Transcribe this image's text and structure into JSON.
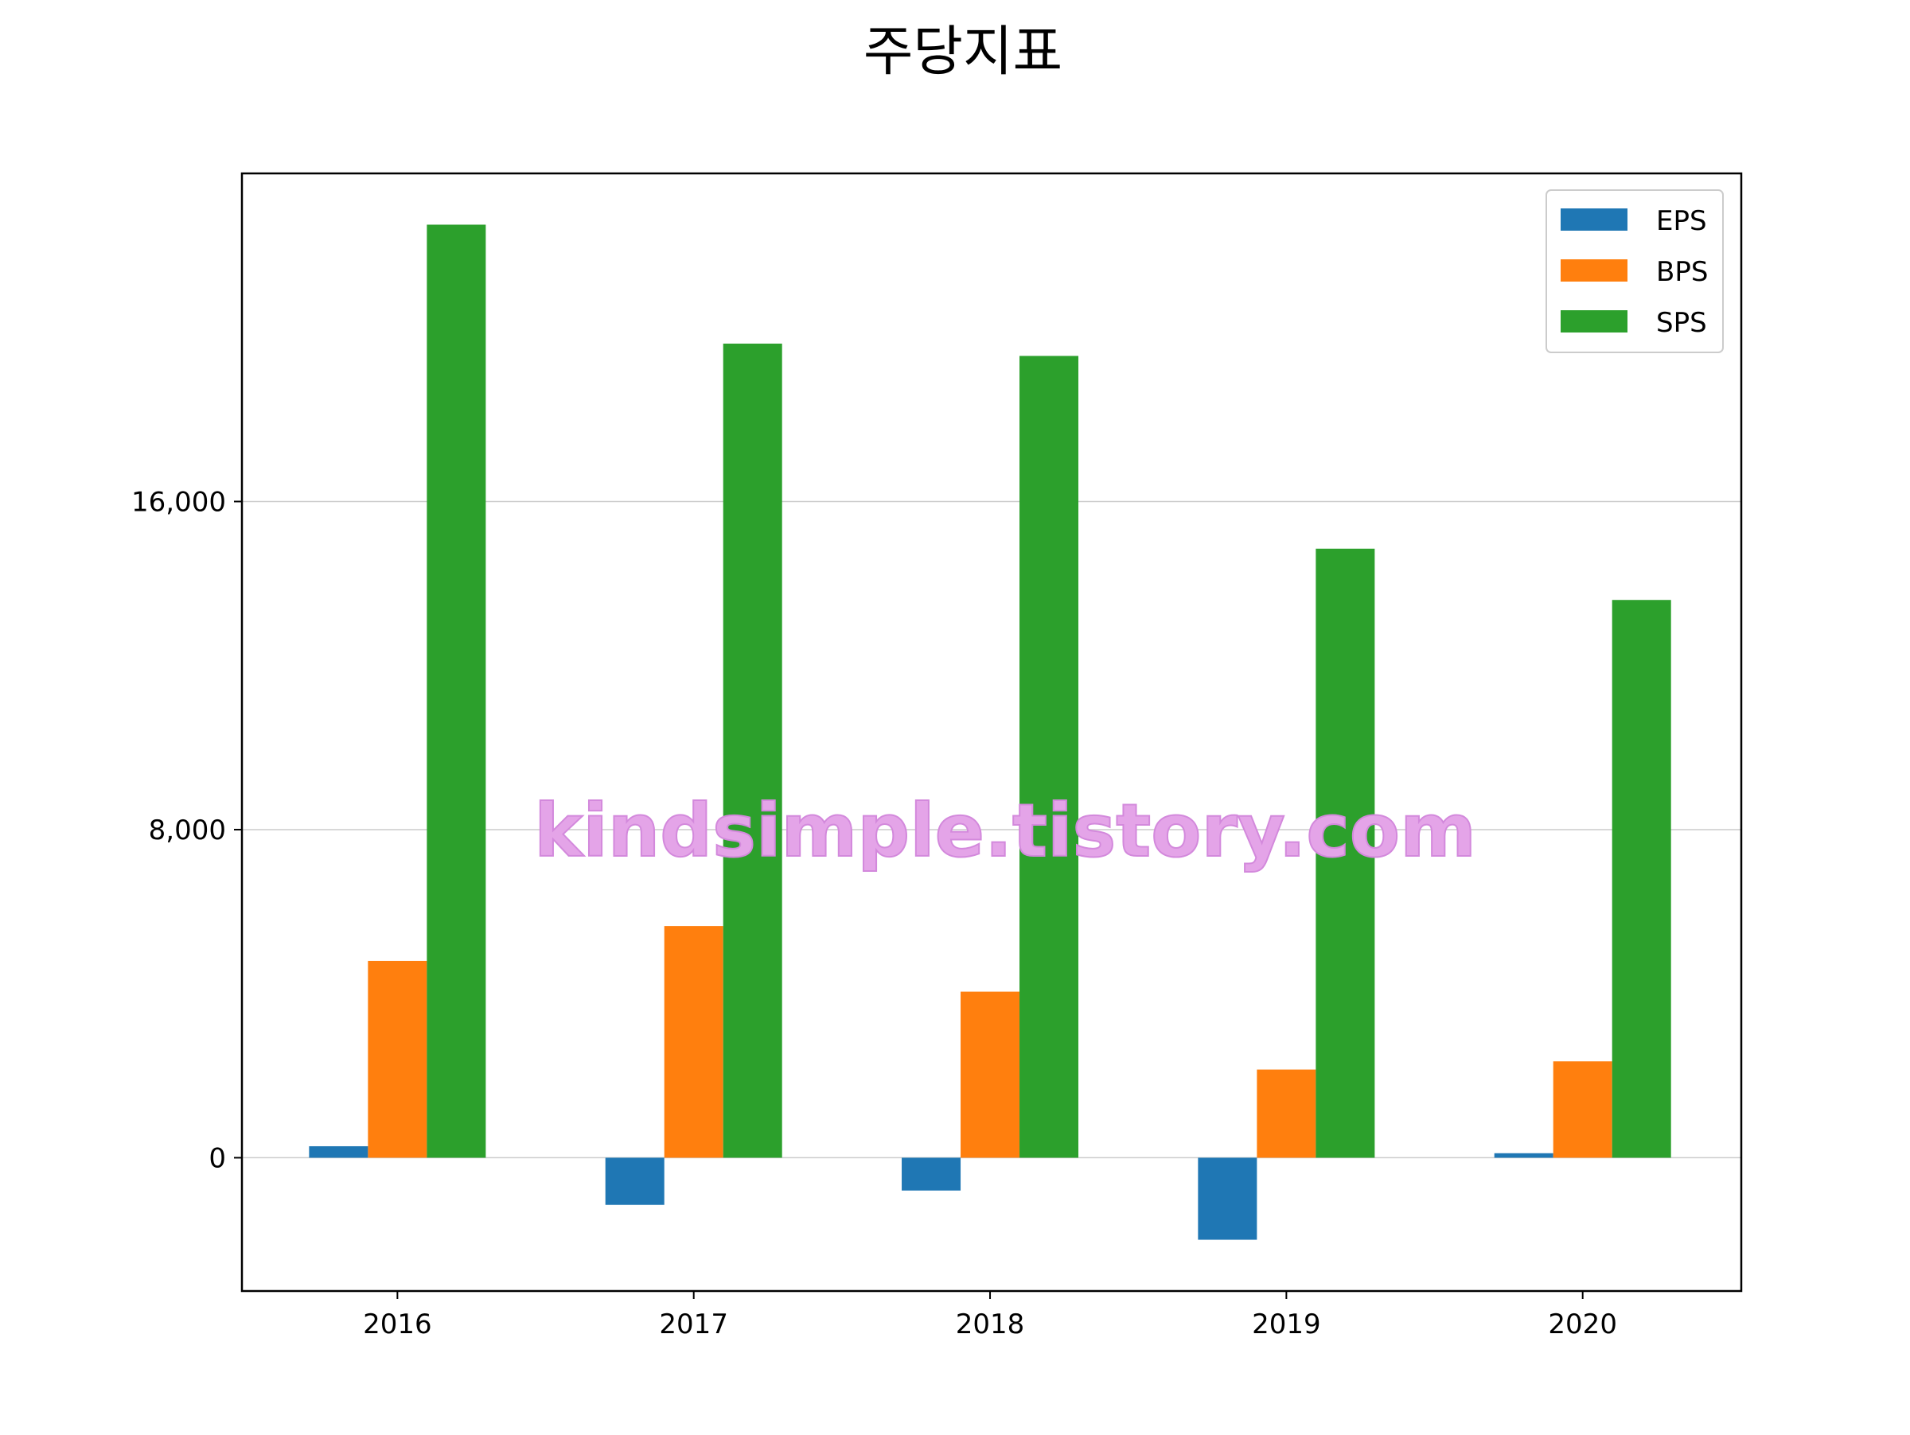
{
  "chart_data": {
    "type": "bar",
    "title": "주당지표",
    "categories": [
      "2016",
      "2017",
      "2018",
      "2019",
      "2020"
    ],
    "series": [
      {
        "name": "EPS",
        "color": "#1f77b4",
        "values": [
          280,
          -1150,
          -800,
          -2000,
          110
        ]
      },
      {
        "name": "BPS",
        "color": "#ff7f0e",
        "values": [
          4800,
          5650,
          4050,
          2150,
          2350
        ]
      },
      {
        "name": "SPS",
        "color": "#2ca02c",
        "values": [
          22750,
          19850,
          19550,
          14850,
          13600
        ]
      }
    ],
    "xlabel": "",
    "ylabel": "",
    "ylim": [
      -3250,
      24000
    ],
    "yticks": [
      0,
      8000,
      16000
    ],
    "ytick_labels": [
      "0",
      "8,000",
      "16,000"
    ],
    "grid": "horizontal",
    "legend": "top-right"
  },
  "watermark": "kindsimple.tistory.com"
}
